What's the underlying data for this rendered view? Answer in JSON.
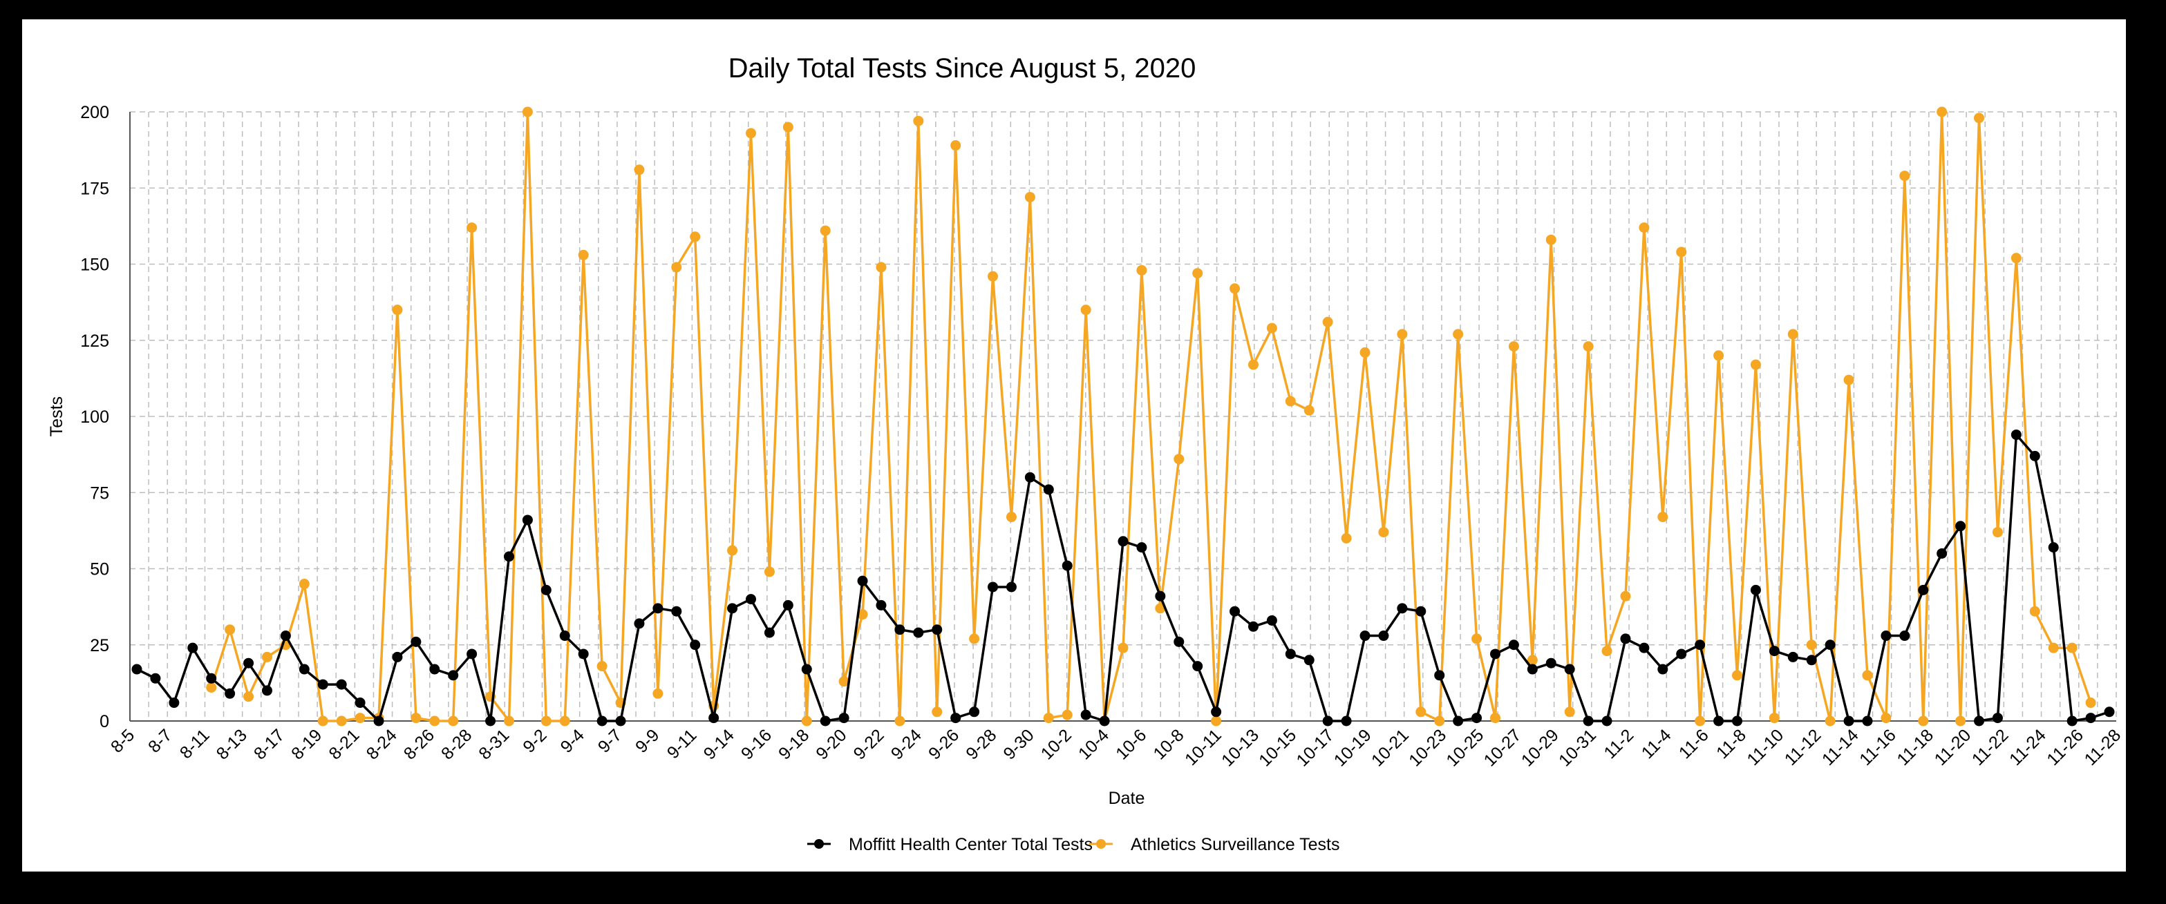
{
  "chart_data": {
    "type": "line",
    "title": "Daily Total Tests Since August 5, 2020",
    "xlabel": "Date",
    "ylabel": "Tests",
    "ylim": [
      0,
      200
    ],
    "yticks": [
      0,
      25,
      50,
      75,
      100,
      125,
      150,
      175,
      200
    ],
    "grid": true,
    "legend_position": "bottom",
    "x_tick_labels": [
      "8-5",
      "8-7",
      "8-11",
      "8-13",
      "8-17",
      "8-19",
      "8-21",
      "8-24",
      "8-26",
      "8-28",
      "8-31",
      "9-2",
      "9-4",
      "9-7",
      "9-9",
      "9-11",
      "9-14",
      "9-16",
      "9-18",
      "9-20",
      "9-22",
      "9-24",
      "9-26",
      "9-28",
      "9-30",
      "10-2",
      "10-4",
      "10-6",
      "10-8",
      "10-11",
      "10-13",
      "10-15",
      "10-17",
      "10-19",
      "10-21",
      "10-23",
      "10-25",
      "10-27",
      "10-29",
      "10-31",
      "11-2",
      "11-4",
      "11-6",
      "11-8",
      "11-10",
      "11-12",
      "11-14",
      "11-16",
      "11-18",
      "11-20",
      "11-22",
      "11-24",
      "11-26",
      "11-28"
    ],
    "series": [
      {
        "name": "Moffitt Health Center Total Tests",
        "color": "#000000",
        "values": [
          17,
          14,
          6,
          24,
          14,
          9,
          19,
          10,
          28,
          17,
          12,
          12,
          6,
          0,
          21,
          26,
          17,
          15,
          22,
          0,
          54,
          66,
          43,
          28,
          22,
          0,
          0,
          32,
          37,
          36,
          25,
          1,
          37,
          40,
          29,
          38,
          17,
          0,
          1,
          46,
          38,
          30,
          29,
          30,
          1,
          3,
          44,
          44,
          80,
          76,
          51,
          2,
          0,
          59,
          57,
          41,
          26,
          18,
          3,
          36,
          31,
          33,
          22,
          20,
          0,
          0,
          28,
          28,
          37,
          36,
          15,
          0,
          1,
          22,
          25,
          17,
          19,
          17,
          0,
          0,
          27,
          24,
          17,
          22,
          25,
          0,
          0,
          43,
          23,
          21,
          20,
          25,
          0,
          0,
          28,
          28,
          43,
          55,
          64,
          0,
          1,
          94,
          87,
          57,
          0,
          1,
          3
        ]
      },
      {
        "name": "Athletics Surveillance Tests",
        "color": "#F5A623",
        "values": [
          null,
          null,
          null,
          null,
          11,
          30,
          8,
          21,
          25,
          45,
          0,
          0,
          1,
          1,
          135,
          1,
          0,
          0,
          162,
          8,
          0,
          200,
          0,
          0,
          153,
          18,
          6,
          181,
          9,
          149,
          159,
          5,
          56,
          193,
          49,
          195,
          0,
          161,
          13,
          35,
          149,
          0,
          197,
          3,
          189,
          27,
          146,
          67,
          172,
          1,
          2,
          135,
          0,
          24,
          148,
          37,
          86,
          147,
          0,
          142,
          117,
          129,
          105,
          102,
          131,
          60,
          121,
          62,
          127,
          3,
          0,
          127,
          27,
          1,
          123,
          20,
          158,
          3,
          123,
          23,
          41,
          162,
          67,
          154,
          0,
          120,
          15,
          117,
          1,
          127,
          25,
          0,
          112,
          15,
          1,
          179,
          0,
          200,
          0,
          198,
          62,
          152,
          36,
          24,
          24,
          6
        ]
      }
    ]
  }
}
